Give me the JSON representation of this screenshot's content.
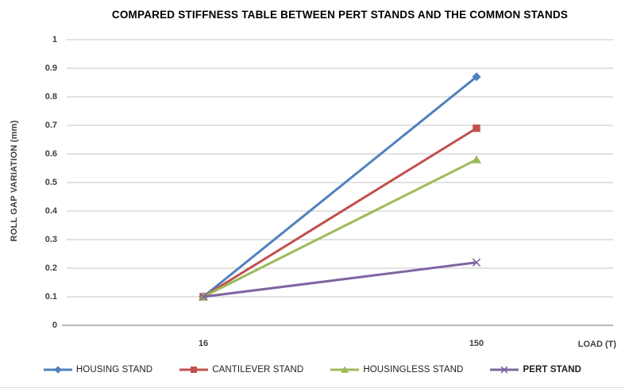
{
  "chart_data": {
    "type": "line",
    "title": "COMPARED STIFFNESS TABLE BETWEEN PERT STANDS AND THE COMMON STANDS",
    "xlabel": "LOAD (T)",
    "ylabel": "ROLL GAP VARIATION (mm)",
    "categories": [
      "16",
      "150"
    ],
    "series": [
      {
        "name": "HOUSING STAND",
        "color": "#4F81BD",
        "marker": "diamond",
        "values": [
          0.1,
          0.87
        ],
        "bold_legend": false
      },
      {
        "name": "CANTILEVER STAND",
        "color": "#C0504D",
        "marker": "square",
        "values": [
          0.1,
          0.69
        ],
        "bold_legend": false
      },
      {
        "name": "HOUSINGLESS STAND",
        "color": "#9BBB59",
        "marker": "triangle",
        "values": [
          0.1,
          0.58
        ],
        "bold_legend": false
      },
      {
        "name": "PERT STAND",
        "color": "#8064A2",
        "marker": "x",
        "values": [
          0.1,
          0.22
        ],
        "bold_legend": true
      }
    ],
    "ylim": [
      0,
      1
    ],
    "ytick_step": 0.1,
    "ytick_labels": [
      "0",
      "0.1",
      "0.2",
      "0.3",
      "0.4",
      "0.5",
      "0.6",
      "0.7",
      "0.8",
      "0.9",
      "1"
    ],
    "grid": "horizontal",
    "legend_position": "bottom",
    "colors": {
      "gridline": "#C6C6C6",
      "axis_line": "#A0A0A0",
      "tick_text": "#3F3F3F",
      "title_text": "#000000"
    }
  }
}
